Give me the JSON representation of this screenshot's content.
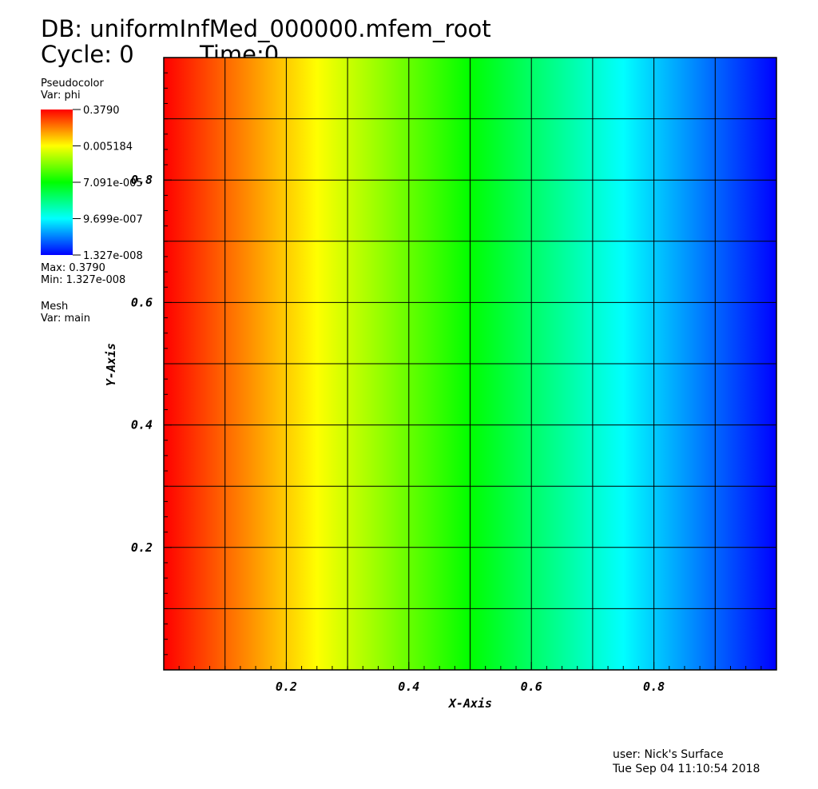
{
  "header": {
    "db_line": "DB: uniformInfMed_000000.mfem_root",
    "cycle_line": "Cycle: 0",
    "time_line": "Time:0"
  },
  "legend": {
    "plot1_type": "Pseudocolor",
    "plot1_var": "Var: phi",
    "colorbar_labels": [
      "0.3790",
      "0.005184",
      "7.091e-005",
      "9.699e-007",
      "1.327e-008"
    ],
    "max_line": "Max:  0.3790",
    "min_line": "Min:  1.327e-008",
    "plot2_type": "Mesh",
    "plot2_var": "Var: main"
  },
  "footer": {
    "user_line": "user: Nick's Surface",
    "date_line": "Tue Sep 04 11:10:54 2018"
  },
  "chart_data": {
    "type": "heatmap",
    "xlabel": "X-Axis",
    "ylabel": "Y-Axis",
    "xlim": [
      0,
      1
    ],
    "ylim": [
      0,
      1
    ],
    "x_ticks": [
      "0.2",
      "0.4",
      "0.6",
      "0.8"
    ],
    "y_ticks": [
      "0.2",
      "0.4",
      "0.6",
      "0.8"
    ],
    "mesh_lines": 10,
    "variable": "phi",
    "scale": "log",
    "min": 1.327e-08,
    "max": 0.379,
    "colorbar_values": [
      0.379,
      0.005184,
      7.091e-05,
      9.699e-07,
      1.327e-08
    ],
    "colormap": [
      "#ff0000",
      "#ffff00",
      "#00ff00",
      "#00ffff",
      "#0000ff"
    ],
    "gradient_direction": "horizontal, red at x=0 to blue at x=1"
  }
}
